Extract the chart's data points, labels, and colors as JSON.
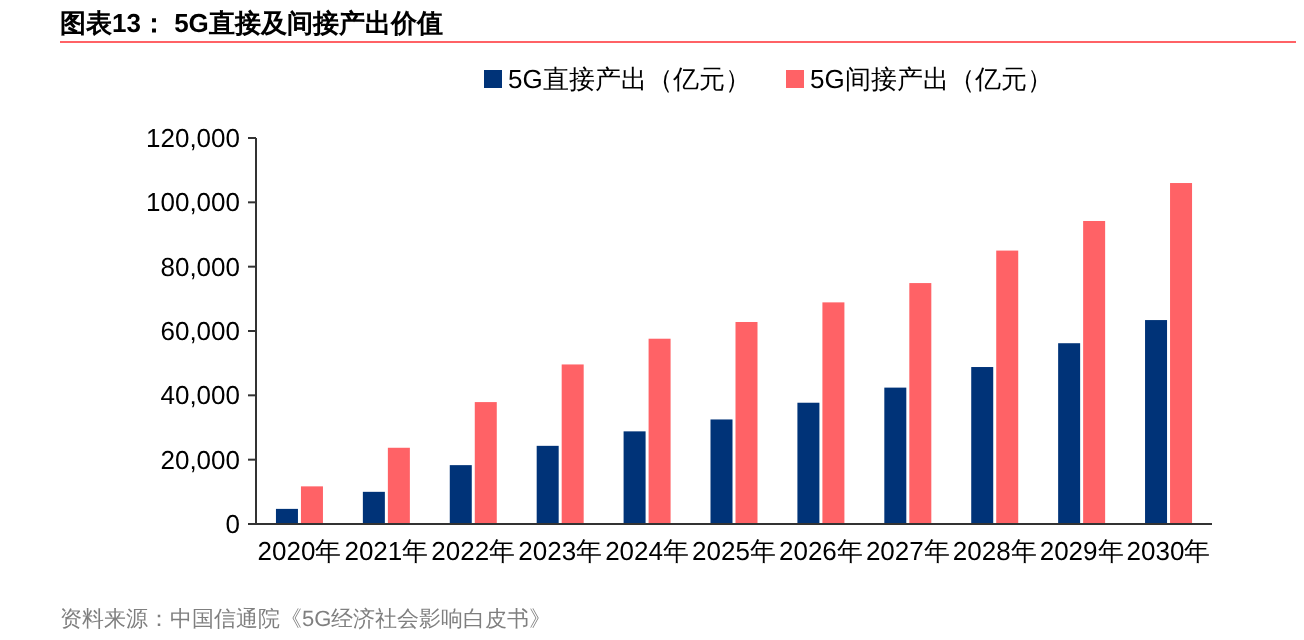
{
  "chart_data": {
    "type": "bar",
    "title": "图表13：  5G直接及间接产出价值",
    "categories": [
      "2020年",
      "2021年",
      "2022年",
      "2023年",
      "2024年",
      "2025年",
      "2026年",
      "2027年",
      "2028年",
      "2029年",
      "2030年"
    ],
    "series": [
      {
        "name": "5G直接产出（亿元）",
        "color": "#003378",
        "values": [
          4700,
          10000,
          18300,
          24300,
          28800,
          32500,
          37700,
          42400,
          48800,
          56200,
          63400
        ]
      },
      {
        "name": "5G间接产出（亿元）",
        "color": "#ff6266",
        "values": [
          11700,
          23700,
          37900,
          49600,
          57600,
          62800,
          68900,
          74900,
          85000,
          94200,
          106000
        ]
      }
    ],
    "ylim": [
      0,
      120000
    ],
    "yticks": [
      0,
      {
        "value": 20000,
        "label": "20,000"
      },
      {
        "value": 40000,
        "label": "40,000"
      },
      {
        "value": 60000,
        "label": "60,000"
      },
      {
        "value": 80000,
        "label": "80,000"
      },
      {
        "value": 100000,
        "label": "100,000"
      },
      {
        "value": 120000,
        "label": "120,000"
      }
    ],
    "grid": false,
    "legend": "top",
    "annotations": [
      "资料来源：中国信通院《5G经济社会影响白皮书》"
    ]
  }
}
